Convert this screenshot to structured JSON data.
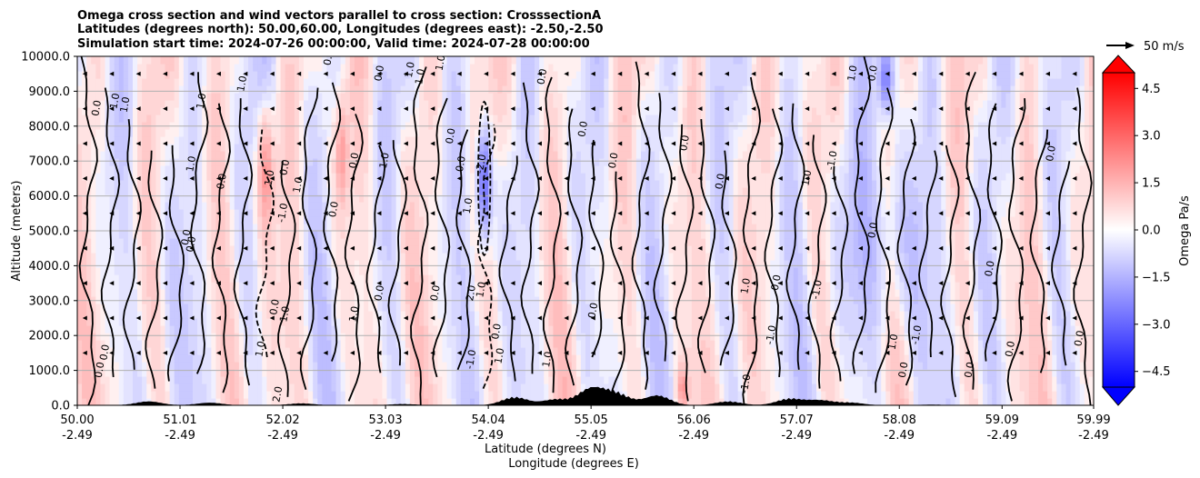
{
  "chart_data": {
    "type": "contour",
    "title_lines": [
      "Omega cross section and wind vectors parallel to cross section: CrosssectionA",
      "Latitudes (degrees north): 50.00,60.00, Longitudes (degrees east): -2.50,-2.50",
      "Simulation start time: 2024-07-26 00:00:00, Valid time: 2024-07-28 00:00:00"
    ],
    "ylabel": "Altitude (meters)",
    "xlabel_lat": "Latitude (degrees N)",
    "xlabel_lon": "Longitude (degrees E)",
    "y_ticks": [
      "0.0",
      "1000.0",
      "2000.0",
      "3000.0",
      "4000.0",
      "5000.0",
      "6000.0",
      "7000.0",
      "8000.0",
      "9000.0",
      "10000.0"
    ],
    "ylim": [
      0,
      10000
    ],
    "xlim": [
      50.0,
      59.99
    ],
    "x_ticks": [
      {
        "lat": "50.00",
        "lon": "-2.49"
      },
      {
        "lat": "51.01",
        "lon": "-2.49"
      },
      {
        "lat": "52.02",
        "lon": "-2.49"
      },
      {
        "lat": "53.03",
        "lon": "-2.49"
      },
      {
        "lat": "54.04",
        "lon": "-2.49"
      },
      {
        "lat": "55.05",
        "lon": "-2.49"
      },
      {
        "lat": "56.06",
        "lon": "-2.49"
      },
      {
        "lat": "57.07",
        "lon": "-2.49"
      },
      {
        "lat": "58.08",
        "lon": "-2.49"
      },
      {
        "lat": "59.09",
        "lon": "-2.49"
      },
      {
        "lat": "59.99",
        "lon": "-2.49"
      }
    ],
    "colorbar": {
      "label": "Omega Pa/s",
      "range": [
        -5.0,
        5.0
      ],
      "ticks": [
        "4.5",
        "3.0",
        "1.5",
        "0.0",
        "−1.5",
        "−3.0",
        "−4.5"
      ],
      "extend": "both",
      "colors": {
        "neg_max": "#0000ff",
        "zero": "#ffffff",
        "pos_max": "#ff0000"
      }
    },
    "quiver_key": {
      "label": "50 m/s",
      "value": 50
    },
    "contour_levels": [
      -2.0,
      -1.0,
      0.0,
      1.0,
      2.0
    ],
    "contour_labels": [
      {
        "text": "0.0",
        "lat": 50.25,
        "alt": 1000
      },
      {
        "text": "0.0",
        "lat": 50.3,
        "alt": 1500
      },
      {
        "text": "1.0",
        "lat": 50.4,
        "alt": 8700
      },
      {
        "text": "0.0",
        "lat": 50.22,
        "alt": 8500
      },
      {
        "text": "1.0",
        "lat": 50.5,
        "alt": 8600
      },
      {
        "text": "1.0",
        "lat": 51.25,
        "alt": 8700
      },
      {
        "text": "1.0",
        "lat": 51.15,
        "alt": 6900
      },
      {
        "text": "0.0",
        "lat": 51.15,
        "alt": 4600
      },
      {
        "text": "1.0",
        "lat": 51.65,
        "alt": 9200
      },
      {
        "text": "0.0",
        "lat": 51.45,
        "alt": 6400
      },
      {
        "text": "0.0",
        "lat": 51.1,
        "alt": 4800
      },
      {
        "text": "-1.0",
        "lat": 52.05,
        "alt": 5500
      },
      {
        "text": "1.0",
        "lat": 51.92,
        "alt": 6500
      },
      {
        "text": "0.0",
        "lat": 52.07,
        "alt": 6800
      },
      {
        "text": "1.0",
        "lat": 52.2,
        "alt": 6300
      },
      {
        "text": "0.0",
        "lat": 51.97,
        "alt": 2800
      },
      {
        "text": "1.0",
        "lat": 52.07,
        "alt": 2600
      },
      {
        "text": "1.0",
        "lat": 51.83,
        "alt": 1600
      },
      {
        "text": "2.0",
        "lat": 52.0,
        "alt": 300
      },
      {
        "text": "0.0",
        "lat": 52.5,
        "alt": 9950
      },
      {
        "text": "0.0",
        "lat": 52.75,
        "alt": 7000
      },
      {
        "text": "1.0",
        "lat": 52.75,
        "alt": 2600
      },
      {
        "text": "0.0",
        "lat": 53.0,
        "alt": 9500
      },
      {
        "text": "1.0",
        "lat": 53.3,
        "alt": 9600
      },
      {
        "text": "1.0",
        "lat": 53.4,
        "alt": 9400
      },
      {
        "text": "1.0",
        "lat": 53.6,
        "alt": 9800
      },
      {
        "text": "1.0",
        "lat": 53.05,
        "alt": 7000
      },
      {
        "text": "0.0",
        "lat": 53.7,
        "alt": 7700
      },
      {
        "text": "0.0",
        "lat": 53.0,
        "alt": 3200
      },
      {
        "text": "0.0",
        "lat": 52.55,
        "alt": 5600
      },
      {
        "text": "0.0",
        "lat": 53.8,
        "alt": 6900
      },
      {
        "text": "1.0",
        "lat": 53.87,
        "alt": 5700
      },
      {
        "text": "-2.0",
        "lat": 54.0,
        "alt": 6900
      },
      {
        "text": "0.0",
        "lat": 53.55,
        "alt": 3200
      },
      {
        "text": "2.0",
        "lat": 53.9,
        "alt": 3200
      },
      {
        "text": "1.0",
        "lat": 54.0,
        "alt": 3300
      },
      {
        "text": "1.0",
        "lat": 54.18,
        "alt": 1400
      },
      {
        "text": "-1.0",
        "lat": 53.9,
        "alt": 1300
      },
      {
        "text": "0.0",
        "lat": 54.15,
        "alt": 2100
      },
      {
        "text": "0.0",
        "lat": 54.6,
        "alt": 9400
      },
      {
        "text": "1.0",
        "lat": 54.65,
        "alt": 1300
      },
      {
        "text": "0.0",
        "lat": 55.0,
        "alt": 7900
      },
      {
        "text": "0.0",
        "lat": 55.1,
        "alt": 2700
      },
      {
        "text": "0.0",
        "lat": 55.3,
        "alt": 7000
      },
      {
        "text": "0.0",
        "lat": 56.0,
        "alt": 7500
      },
      {
        "text": "0.0",
        "lat": 56.35,
        "alt": 6400
      },
      {
        "text": "1.0",
        "lat": 56.6,
        "alt": 3400
      },
      {
        "text": "0.0",
        "lat": 56.9,
        "alt": 3500
      },
      {
        "text": "-1.0",
        "lat": 56.85,
        "alt": 2000
      },
      {
        "text": "-1.0",
        "lat": 56.6,
        "alt": 600
      },
      {
        "text": "-1.0",
        "lat": 57.3,
        "alt": 3300
      },
      {
        "text": "1.0",
        "lat": 57.2,
        "alt": 6500
      },
      {
        "text": "-1.0",
        "lat": 57.45,
        "alt": 7000
      },
      {
        "text": "1.0",
        "lat": 57.65,
        "alt": 9500
      },
      {
        "text": "0.0",
        "lat": 57.85,
        "alt": 9500
      },
      {
        "text": "0.0",
        "lat": 57.85,
        "alt": 5000
      },
      {
        "text": "0.0",
        "lat": 58.15,
        "alt": 1000
      },
      {
        "text": "1.0",
        "lat": 58.05,
        "alt": 1800
      },
      {
        "text": "-1.0",
        "lat": 58.28,
        "alt": 2000
      },
      {
        "text": "0.0",
        "lat": 59.0,
        "alt": 3900
      },
      {
        "text": "0.0",
        "lat": 59.2,
        "alt": 1600
      },
      {
        "text": "0.0",
        "lat": 59.6,
        "alt": 7200
      },
      {
        "text": "0.0",
        "lat": 59.88,
        "alt": 1900
      },
      {
        "text": "0.0",
        "lat": 58.8,
        "alt": 1000
      }
    ]
  }
}
